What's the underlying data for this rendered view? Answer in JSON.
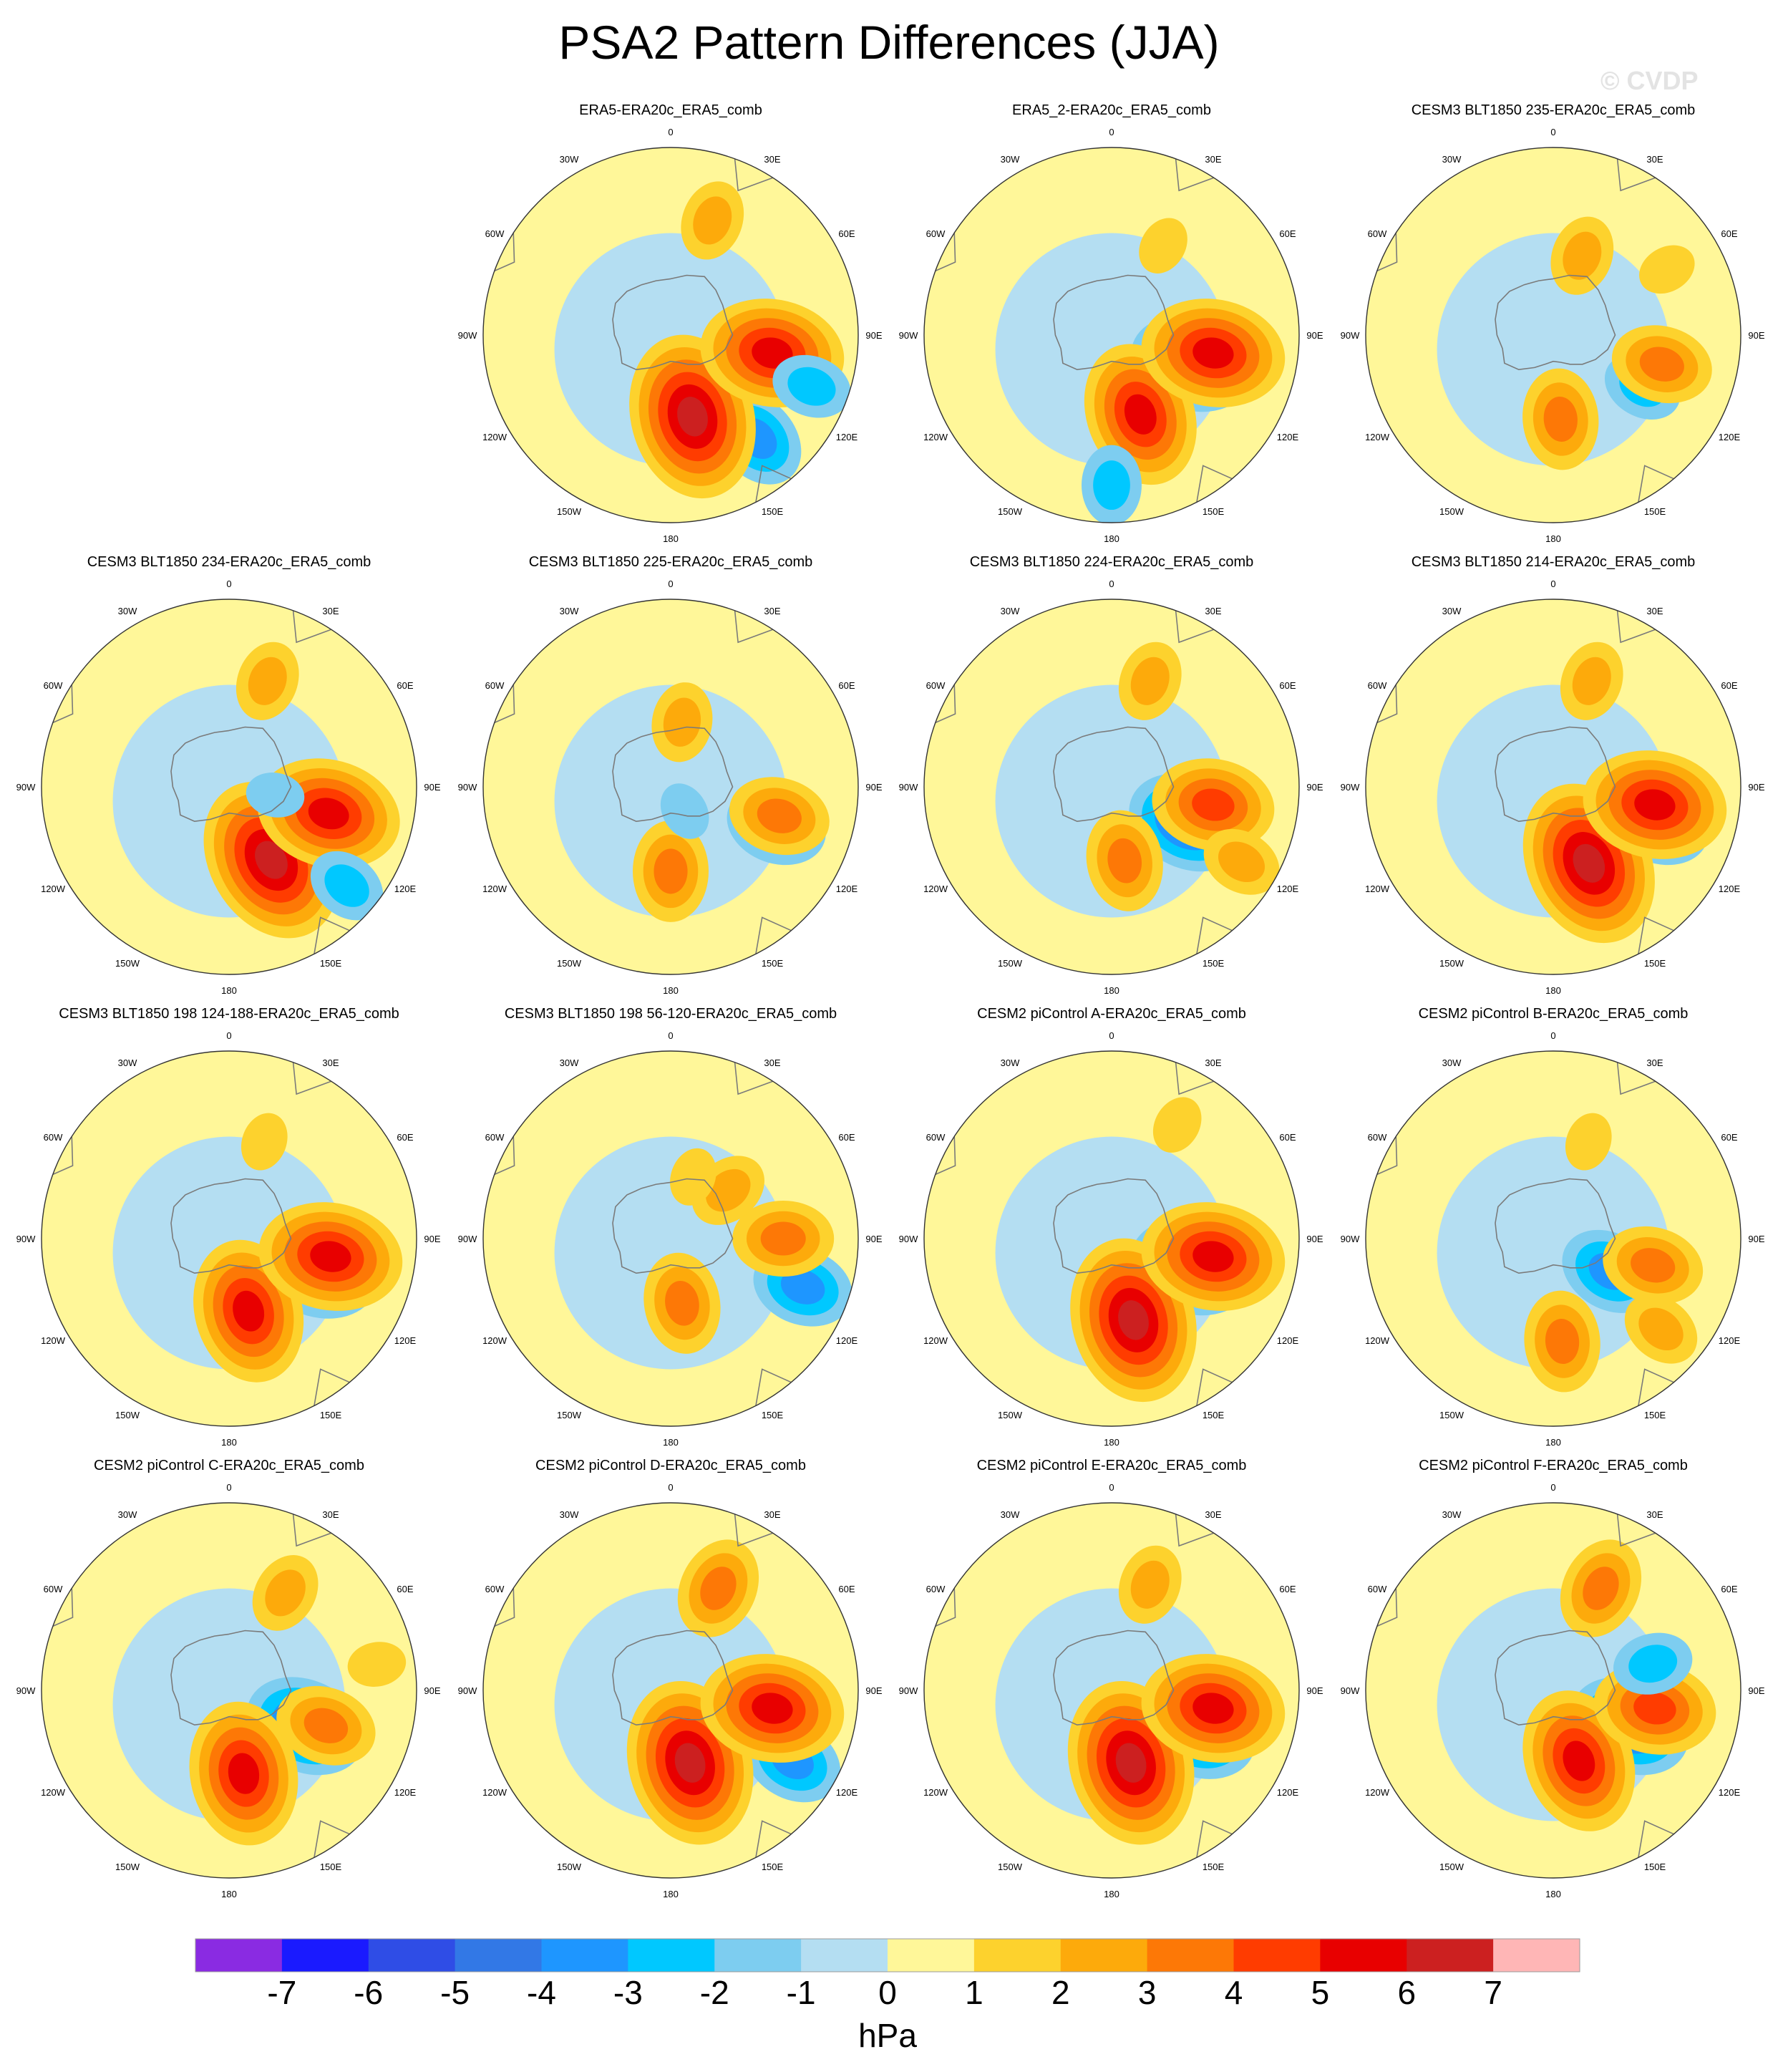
{
  "title": "PSA2 Pattern Differences (JJA)",
  "watermark": "© CVDP",
  "projection": "south-polar-stereographic",
  "longitude_labels": [
    "0",
    "30E",
    "60E",
    "90E",
    "120E",
    "150E",
    "180",
    "150W",
    "120W",
    "90W",
    "60W",
    "30W"
  ],
  "colorbar": {
    "unit": "hPa",
    "tick_labels": [
      "-7",
      "-6",
      "-5",
      "-4",
      "-3",
      "-2",
      "-1",
      "0",
      "1",
      "2",
      "3",
      "4",
      "5",
      "6",
      "7"
    ],
    "bin_colors": [
      "#8a2be2",
      "#1a1aff",
      "#2f4de6",
      "#3278e6",
      "#1e96ff",
      "#00c8ff",
      "#7dcdf0",
      "#b4def2",
      "#fff799",
      "#fdd22d",
      "#fdaa0b",
      "#fd7806",
      "#ff3c00",
      "#e80000",
      "#cc2020",
      "#ffb6b6"
    ]
  },
  "panels": [
    {
      "title": "ERA5-ERA20c_ERA5_comb",
      "blobs": [
        [
          -4,
          145,
          0.4
        ],
        [
          -3,
          140,
          0.72
        ],
        [
          6,
          165,
          0.45
        ],
        [
          5,
          100,
          0.55
        ],
        [
          2,
          20,
          0.65
        ],
        [
          -2,
          110,
          0.8
        ]
      ]
    },
    {
      "title": "ERA5_2-ERA20c_ERA5_comb",
      "blobs": [
        [
          -4,
          110,
          0.45
        ],
        [
          5,
          160,
          0.45
        ],
        [
          5,
          100,
          0.55
        ],
        [
          1,
          30,
          0.55
        ],
        [
          -2,
          180,
          0.8
        ]
      ]
    },
    {
      "title": "CESM3 BLT1850 235-ERA20c_ERA5_comb",
      "blobs": [
        [
          -2,
          120,
          0.55
        ],
        [
          3,
          175,
          0.45
        ],
        [
          3,
          105,
          0.6
        ],
        [
          2,
          20,
          0.45
        ],
        [
          1,
          60,
          0.7
        ]
      ]
    },
    {
      "title": "CESM3 BLT1850 234-ERA20c_ERA5_comb",
      "blobs": [
        [
          6,
          150,
          0.45
        ],
        [
          5,
          105,
          0.55
        ],
        [
          -2,
          130,
          0.82
        ],
        [
          -1,
          100,
          0.25
        ],
        [
          2,
          20,
          0.6
        ]
      ]
    },
    {
      "title": "CESM3 BLT1850 225-ERA20c_ERA5_comb",
      "blobs": [
        [
          -3,
          110,
          0.6
        ],
        [
          3,
          180,
          0.45
        ],
        [
          3,
          105,
          0.6
        ],
        [
          2,
          10,
          0.35
        ],
        [
          -1,
          150,
          0.15
        ]
      ]
    },
    {
      "title": "CESM3 BLT1850 224-ERA20c_ERA5_comb",
      "blobs": [
        [
          -4,
          115,
          0.45
        ],
        [
          3,
          170,
          0.4
        ],
        [
          4,
          100,
          0.55
        ],
        [
          2,
          20,
          0.6
        ],
        [
          2,
          120,
          0.8
        ]
      ]
    },
    {
      "title": "CESM3 BLT1850 214-ERA20c_ERA5_comb",
      "blobs": [
        [
          -3,
          110,
          0.6
        ],
        [
          6,
          155,
          0.45
        ],
        [
          5,
          100,
          0.55
        ],
        [
          2,
          20,
          0.6
        ]
      ]
    },
    {
      "title": "CESM3 BLT1850 198 124-188-ERA20c_ERA5_comb",
      "blobs": [
        [
          -4,
          110,
          0.5
        ],
        [
          5,
          165,
          0.4
        ],
        [
          5,
          100,
          0.55
        ],
        [
          1,
          20,
          0.55
        ]
      ]
    },
    {
      "title": "CESM3 BLT1850 198 56-120-ERA20c_ERA5_comb",
      "blobs": [
        [
          -3,
          110,
          0.75
        ],
        [
          3,
          170,
          0.35
        ],
        [
          3,
          90,
          0.6
        ],
        [
          2,
          50,
          0.4
        ],
        [
          1,
          20,
          0.35
        ]
      ]
    },
    {
      "title": "CESM2 piControl A-ERA20c_ERA5_comb",
      "blobs": [
        [
          -4,
          110,
          0.45
        ],
        [
          6,
          165,
          0.45
        ],
        [
          5,
          100,
          0.55
        ],
        [
          1,
          30,
          0.7
        ]
      ]
    },
    {
      "title": "CESM2 piControl B-ERA20c_ERA5_comb",
      "blobs": [
        [
          -3,
          120,
          0.35
        ],
        [
          3,
          175,
          0.55
        ],
        [
          3,
          105,
          0.55
        ],
        [
          2,
          130,
          0.75
        ],
        [
          1,
          20,
          0.55
        ]
      ]
    },
    {
      "title": "CESM2 piControl C-ERA20c_ERA5_comb",
      "blobs": [
        [
          -4,
          115,
          0.45
        ],
        [
          5,
          170,
          0.45
        ],
        [
          3,
          110,
          0.55
        ],
        [
          1,
          80,
          0.8
        ],
        [
          2,
          30,
          0.6
        ]
      ]
    },
    {
      "title": "CESM2 piControl D-ERA20c_ERA5_comb",
      "blobs": [
        [
          -3,
          120,
          0.75
        ],
        [
          6,
          165,
          0.4
        ],
        [
          5,
          100,
          0.55
        ],
        [
          3,
          25,
          0.6
        ]
      ]
    },
    {
      "title": "CESM2 piControl E-ERA20c_ERA5_comb",
      "blobs": [
        [
          -4,
          115,
          0.5
        ],
        [
          6,
          165,
          0.4
        ],
        [
          5,
          100,
          0.55
        ],
        [
          2,
          20,
          0.6
        ]
      ]
    },
    {
      "title": "CESM2 piControl F-ERA20c_ERA5_comb",
      "blobs": [
        [
          -4,
          115,
          0.45
        ],
        [
          5,
          160,
          0.4
        ],
        [
          4,
          100,
          0.55
        ],
        [
          3,
          25,
          0.6
        ],
        [
          -2,
          75,
          0.55
        ]
      ]
    }
  ]
}
